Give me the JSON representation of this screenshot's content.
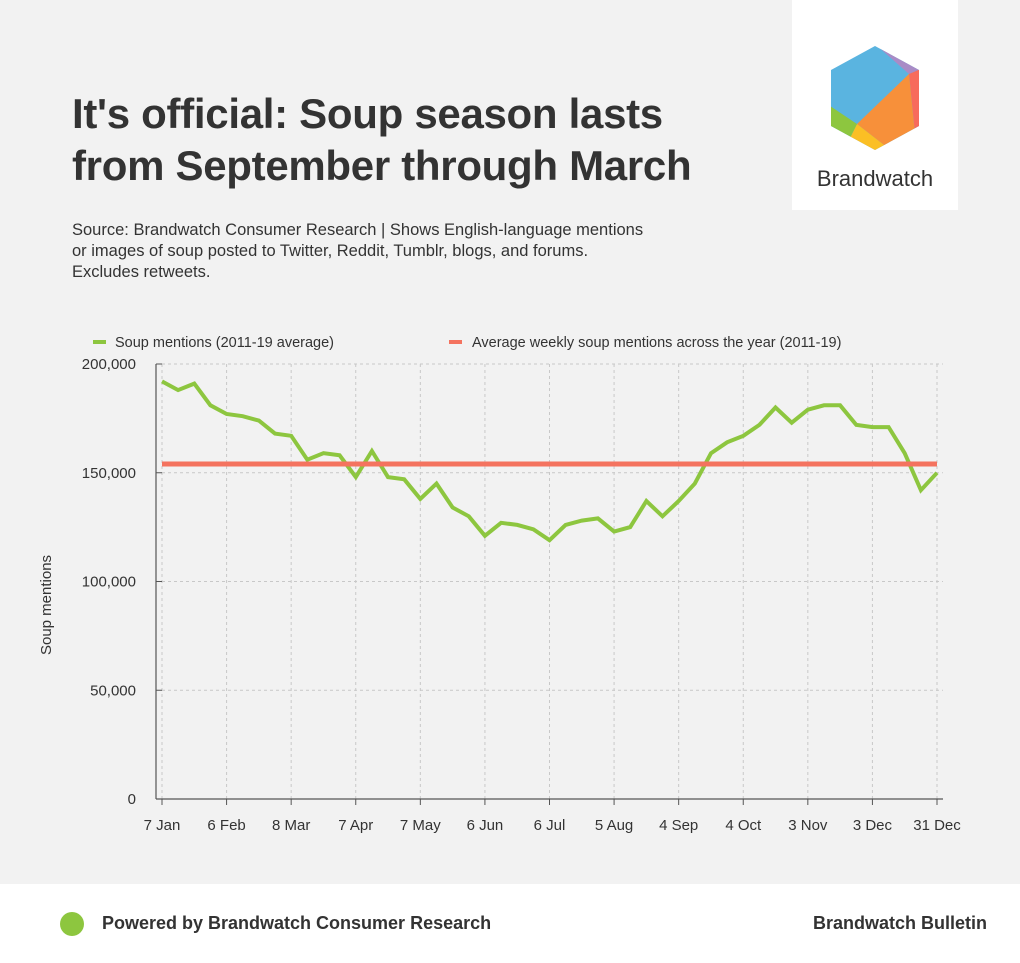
{
  "header": {
    "title_line1": "It's official: Soup season lasts",
    "title_line2": "from September through March",
    "source_line1": "Source: Brandwatch Consumer Research | Shows English-language mentions",
    "source_line2": "or images of soup posted to Twitter, Reddit, Tumblr, blogs, and forums.",
    "source_line3": "Excludes retweets."
  },
  "logo": {
    "wordmark": "Brandwatch"
  },
  "footer": {
    "left_text": "Powered by Brandwatch Consumer Research",
    "right_text": "Brandwatch Bulletin"
  },
  "colors": {
    "series_line": "#8dc63f",
    "average_line": "#f4735f",
    "background": "#f2f2f2",
    "text": "#333333"
  },
  "chart_data": {
    "type": "line",
    "title": "It's official: Soup season lasts from September through March",
    "xlabel": "",
    "ylabel": "Soup mentions",
    "ylim": [
      0,
      200000
    ],
    "yticks": [
      0,
      50000,
      100000,
      150000,
      200000
    ],
    "ytick_labels": [
      "0",
      "50,000",
      "100,000",
      "150,000",
      "200,000"
    ],
    "xtick_labels": [
      "7 Jan",
      "6 Feb",
      "8 Mar",
      "7 Apr",
      "7 May",
      "6 Jun",
      "6 Jul",
      "5 Aug",
      "4 Sep",
      "4 Oct",
      "3 Nov",
      "3 Dec",
      "31 Dec"
    ],
    "grid": true,
    "legend_position": "top",
    "series": [
      {
        "name": "Soup mentions (2011-19 average)",
        "values": [
          192000,
          188000,
          191000,
          181000,
          177000,
          176000,
          174000,
          168000,
          167000,
          156000,
          159000,
          158000,
          148000,
          160000,
          148000,
          147000,
          138000,
          145000,
          134000,
          130000,
          121000,
          127000,
          126000,
          124000,
          119000,
          126000,
          128000,
          129000,
          123000,
          125000,
          137000,
          130000,
          137000,
          145000,
          159000,
          164000,
          167000,
          172000,
          180000,
          173000,
          179000,
          181000,
          181000,
          172000,
          171000,
          171000,
          159000,
          142000,
          150000
        ]
      },
      {
        "name": "Average weekly soup mentions across the year (2011-19)",
        "values": [
          154000
        ]
      }
    ]
  }
}
